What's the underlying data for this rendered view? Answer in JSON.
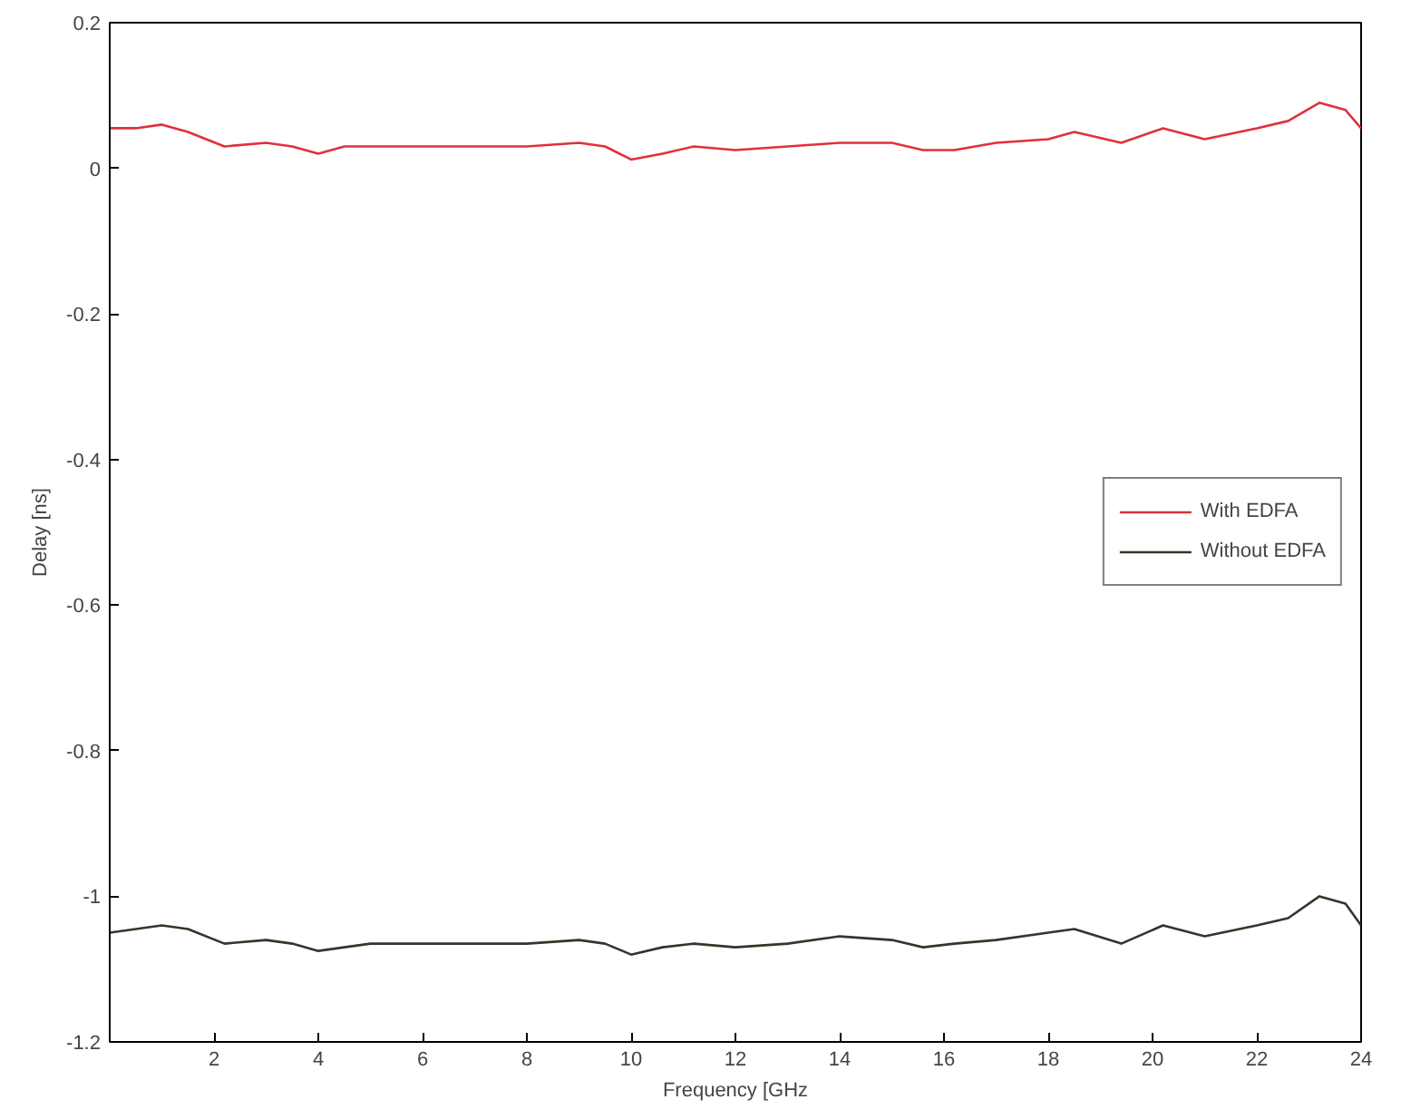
{
  "chart_data": {
    "type": "line",
    "xlabel": "Frequency [GHz",
    "ylabel": "Delay [ns]",
    "xlim": [
      0,
      24
    ],
    "ylim": [
      -1.2,
      0.2
    ],
    "xticks": [
      2,
      4,
      6,
      8,
      10,
      12,
      14,
      16,
      18,
      20,
      22,
      24
    ],
    "yticks": [
      -1.2,
      {
        "value": -1,
        "label": "-1"
      },
      -0.8,
      -0.6,
      -0.4,
      -0.2,
      0,
      0.2
    ],
    "grid": false,
    "legend": "right",
    "marker": "none",
    "line_style": "solid",
    "series": [
      {
        "name": "With EDFA",
        "color": "#e0303c",
        "x": [
          0,
          0.5,
          1,
          1.5,
          2.2,
          3,
          3.5,
          4,
          4.5,
          5,
          6,
          7,
          8,
          9,
          9.5,
          10,
          10.6,
          11.2,
          12,
          13,
          14,
          15,
          15.6,
          16.2,
          17,
          18,
          18.5,
          19.4,
          20.2,
          21,
          22,
          22.6,
          23.2,
          23.7,
          24
        ],
        "values": [
          0.055,
          0.055,
          0.06,
          0.05,
          0.03,
          0.035,
          0.03,
          0.02,
          0.03,
          0.03,
          0.03,
          0.03,
          0.03,
          0.035,
          0.03,
          0.012,
          0.02,
          0.03,
          0.025,
          0.03,
          0.035,
          0.035,
          0.025,
          0.025,
          0.035,
          0.04,
          0.05,
          0.035,
          0.055,
          0.04,
          0.055,
          0.065,
          0.09,
          0.08,
          0.055
        ]
      },
      {
        "name": "Without EDFA",
        "color": "#303828",
        "x": [
          0,
          0.5,
          1,
          1.5,
          2.2,
          3,
          3.5,
          4,
          4.5,
          5,
          6,
          7,
          8,
          9,
          9.5,
          10,
          10.6,
          11.2,
          12,
          13,
          14,
          15,
          15.6,
          16.2,
          17,
          18,
          18.5,
          19.4,
          20.2,
          21,
          22,
          22.6,
          23.2,
          23.7,
          24
        ],
        "values": [
          -1.05,
          -1.045,
          -1.04,
          -1.045,
          -1.065,
          -1.06,
          -1.065,
          -1.075,
          -1.07,
          -1.065,
          -1.065,
          -1.065,
          -1.065,
          -1.06,
          -1.065,
          -1.08,
          -1.07,
          -1.065,
          -1.07,
          -1.065,
          -1.055,
          -1.06,
          -1.07,
          -1.065,
          -1.06,
          -1.05,
          -1.045,
          -1.065,
          -1.04,
          -1.055,
          -1.04,
          -1.03,
          -1.0,
          -1.01,
          -1.04
        ]
      }
    ]
  }
}
